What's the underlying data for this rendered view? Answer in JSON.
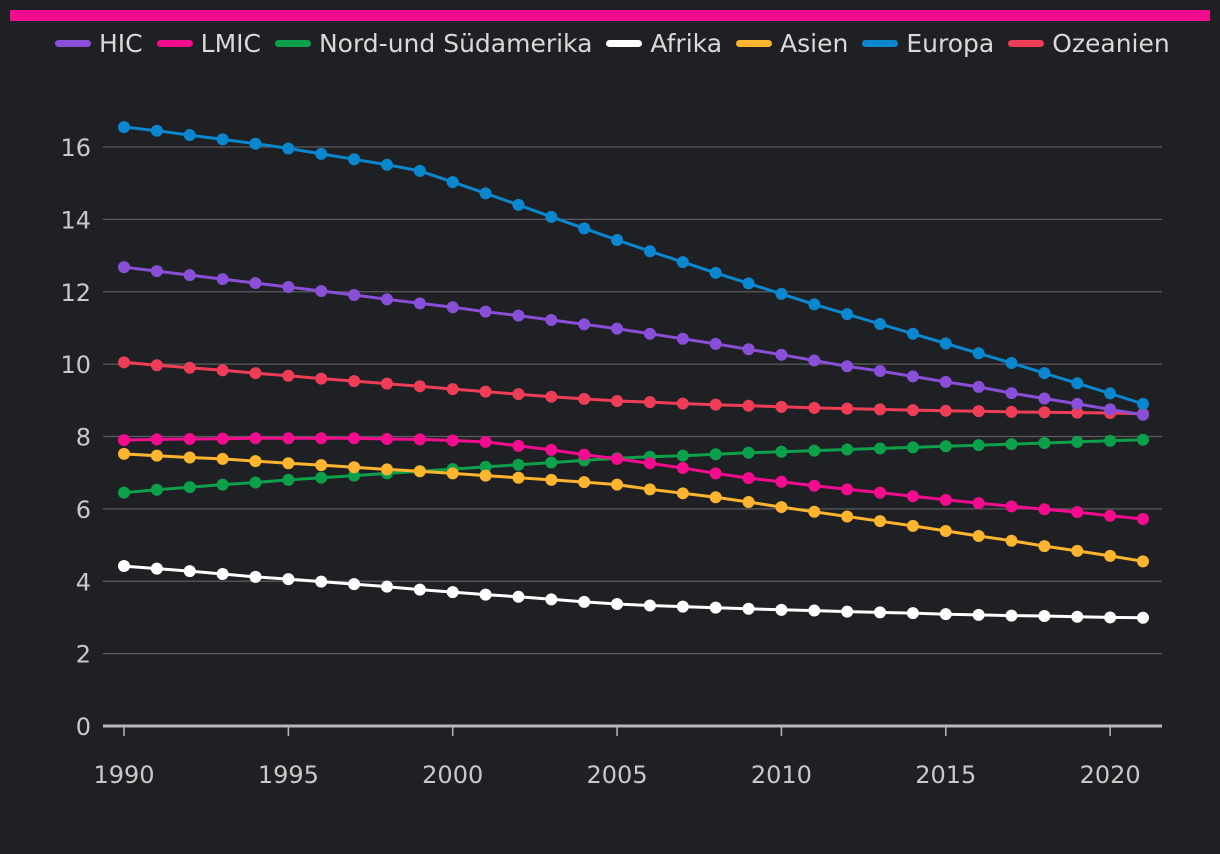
{
  "colors": {
    "background": "#1f2023",
    "accent": "#f40c8f",
    "grid": "#5a5b60",
    "axis": "#b8b8b8"
  },
  "chart_data": {
    "type": "line",
    "title": "",
    "xlabel": "",
    "ylabel": "",
    "legend_position": "top",
    "x": [
      1990,
      1991,
      1992,
      1993,
      1994,
      1995,
      1996,
      1997,
      1998,
      1999,
      2000,
      2001,
      2002,
      2003,
      2004,
      2005,
      2006,
      2007,
      2008,
      2009,
      2010,
      2011,
      2012,
      2013,
      2014,
      2015,
      2016,
      2017,
      2018,
      2019,
      2020,
      2021
    ],
    "xlim": [
      1990,
      2021
    ],
    "ylim": [
      0,
      16
    ],
    "x_ticks": [
      1990,
      1995,
      2000,
      2005,
      2010,
      2015,
      2020
    ],
    "x_tick_labels": [
      "1990",
      "1995",
      "2000",
      "2005",
      "2010",
      "2015",
      "2020"
    ],
    "y_ticks": [
      0,
      2,
      4,
      6,
      8,
      10,
      12,
      14,
      16
    ],
    "y_tick_labels": [
      "0",
      "2",
      "4",
      "6",
      "8",
      "10",
      "12",
      "14",
      "16"
    ],
    "series": [
      {
        "name": "Nord-und Südamerika",
        "color": "#0ca04a",
        "values": [
          6.45,
          6.53,
          6.6,
          6.67,
          6.73,
          6.8,
          6.86,
          6.92,
          6.98,
          7.04,
          7.1,
          7.16,
          7.22,
          7.28,
          7.34,
          7.4,
          7.44,
          7.47,
          7.51,
          7.55,
          7.58,
          7.61,
          7.64,
          7.67,
          7.7,
          7.73,
          7.76,
          7.79,
          7.82,
          7.85,
          7.88,
          7.91
        ]
      },
      {
        "name": "Afrika",
        "color": "#ffffff",
        "values": [
          4.42,
          4.35,
          4.28,
          4.2,
          4.12,
          4.06,
          3.99,
          3.92,
          3.85,
          3.77,
          3.7,
          3.63,
          3.57,
          3.5,
          3.43,
          3.37,
          3.33,
          3.3,
          3.27,
          3.24,
          3.21,
          3.19,
          3.16,
          3.14,
          3.12,
          3.09,
          3.07,
          3.05,
          3.04,
          3.02,
          3.0,
          2.99
        ]
      },
      {
        "name": "Asien",
        "color": "#fdb42f",
        "values": [
          7.52,
          7.47,
          7.42,
          7.38,
          7.32,
          7.26,
          7.21,
          7.15,
          7.09,
          7.04,
          6.98,
          6.92,
          6.86,
          6.8,
          6.74,
          6.67,
          6.54,
          6.43,
          6.32,
          6.19,
          6.05,
          5.92,
          5.79,
          5.66,
          5.53,
          5.39,
          5.25,
          5.12,
          4.97,
          4.84,
          4.7,
          4.55
        ]
      },
      {
        "name": "LMIC",
        "color": "#f40c8f",
        "values": [
          7.9,
          7.92,
          7.93,
          7.94,
          7.95,
          7.95,
          7.95,
          7.95,
          7.93,
          7.92,
          7.89,
          7.85,
          7.74,
          7.63,
          7.5,
          7.38,
          7.26,
          7.13,
          6.98,
          6.85,
          6.75,
          6.64,
          6.54,
          6.45,
          6.35,
          6.25,
          6.16,
          6.07,
          5.99,
          5.91,
          5.81,
          5.72
        ]
      },
      {
        "name": "Ozeanien",
        "color": "#ef3d57",
        "values": [
          10.05,
          9.97,
          9.9,
          9.83,
          9.75,
          9.68,
          9.6,
          9.53,
          9.46,
          9.39,
          9.31,
          9.24,
          9.17,
          9.1,
          9.04,
          8.98,
          8.95,
          8.91,
          8.88,
          8.85,
          8.82,
          8.79,
          8.77,
          8.75,
          8.73,
          8.71,
          8.7,
          8.68,
          8.67,
          8.66,
          8.65,
          8.63
        ]
      },
      {
        "name": "HIC",
        "color": "#8a4fd8",
        "values": [
          12.68,
          12.57,
          12.46,
          12.35,
          12.24,
          12.13,
          12.02,
          11.91,
          11.79,
          11.68,
          11.57,
          11.45,
          11.34,
          11.22,
          11.1,
          10.98,
          10.84,
          10.7,
          10.56,
          10.41,
          10.26,
          10.1,
          9.94,
          9.81,
          9.66,
          9.51,
          9.37,
          9.2,
          9.05,
          8.9,
          8.75,
          8.6
        ]
      },
      {
        "name": "Europa",
        "color": "#0a87cf",
        "values": [
          16.55,
          16.45,
          16.33,
          16.21,
          16.09,
          15.96,
          15.81,
          15.66,
          15.51,
          15.34,
          15.03,
          14.72,
          14.4,
          14.07,
          13.75,
          13.43,
          13.12,
          12.82,
          12.52,
          12.23,
          11.94,
          11.65,
          11.38,
          11.11,
          10.84,
          10.57,
          10.3,
          10.03,
          9.75,
          9.47,
          9.19,
          8.9
        ]
      }
    ]
  },
  "legend": [
    {
      "label": "HIC",
      "color": "#8a4fd8"
    },
    {
      "label": "LMIC",
      "color": "#f40c8f"
    },
    {
      "label": "Nord-und Südamerika",
      "color": "#0ca04a"
    },
    {
      "label": "Afrika",
      "color": "#ffffff"
    },
    {
      "label": "Asien",
      "color": "#fdb42f"
    },
    {
      "label": "Europa",
      "color": "#0a87cf"
    },
    {
      "label": "Ozeanien",
      "color": "#ef3d57"
    }
  ]
}
